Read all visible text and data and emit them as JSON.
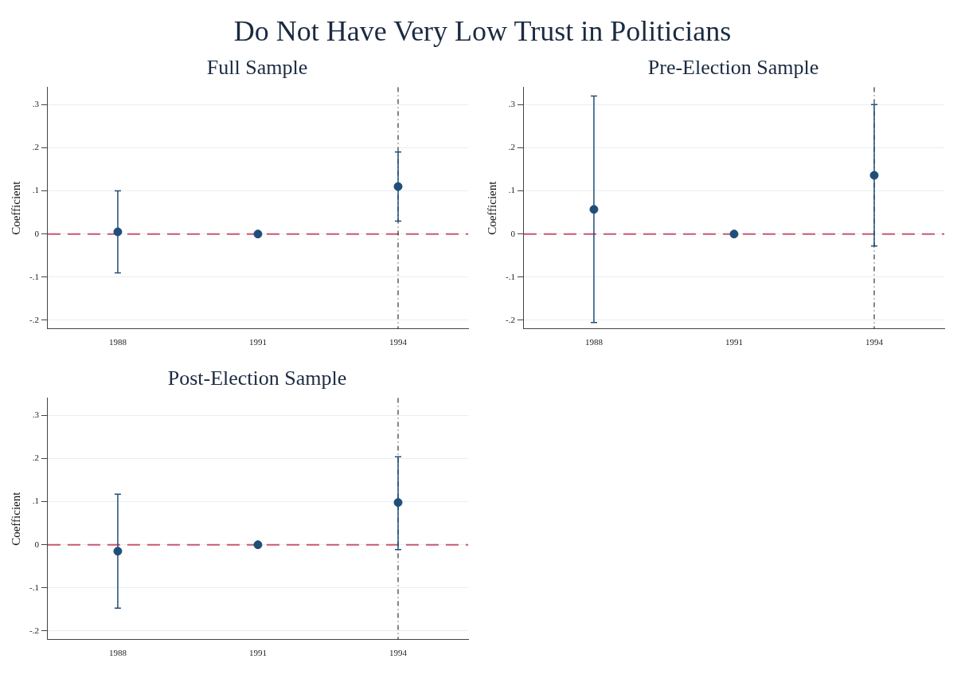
{
  "chart_data": [
    {
      "type": "scatter",
      "title": "Do Not Have Very Low Trust in Politicians",
      "subtitle": "Full Sample",
      "ylabel": "Coefficient",
      "x": [
        1988,
        1991,
        1994
      ],
      "values": [
        0.005,
        0,
        0.11
      ],
      "errors": [
        [
          -0.09,
          0.1
        ],
        null,
        [
          0.03,
          0.19
        ]
      ],
      "color": "#1f4e79",
      "marker": "circle",
      "grid": "y",
      "xlim": [
        1986.5,
        1995.5
      ],
      "xticks": [
        1988,
        1991,
        1994
      ],
      "ylim": [
        -0.22,
        0.34
      ],
      "yticks": [
        {
          "value": -0.2,
          "label": "-.2"
        },
        {
          "value": -0.1,
          "label": "-.1"
        },
        {
          "value": 0,
          "label": "0"
        },
        {
          "value": 0.1,
          "label": ".1"
        },
        {
          "value": 0.2,
          "label": ".2"
        },
        {
          "value": 0.3,
          "label": ".3"
        }
      ],
      "ref_lines": [
        {
          "axis": "y",
          "value": 0,
          "color": "#c8596f",
          "line_style": "dashed"
        },
        {
          "axis": "x",
          "value": 1994,
          "color": "#333333",
          "line_style": "dotted"
        }
      ]
    },
    {
      "type": "scatter",
      "subtitle": "Pre-Election Sample",
      "ylabel": "Coefficient",
      "x": [
        1988,
        1991,
        1994
      ],
      "values": [
        0.057,
        0,
        0.136
      ],
      "errors": [
        [
          -0.205,
          0.32
        ],
        null,
        [
          -0.028,
          0.3
        ]
      ],
      "color": "#1f4e79",
      "marker": "circle",
      "grid": "y",
      "xlim": [
        1986.5,
        1995.5
      ],
      "xticks": [
        1988,
        1991,
        1994
      ],
      "ylim": [
        -0.22,
        0.34
      ],
      "yticks": [
        {
          "value": -0.2,
          "label": "-.2"
        },
        {
          "value": -0.1,
          "label": "-.1"
        },
        {
          "value": 0,
          "label": "0"
        },
        {
          "value": 0.1,
          "label": ".1"
        },
        {
          "value": 0.2,
          "label": ".2"
        },
        {
          "value": 0.3,
          "label": ".3"
        }
      ],
      "ref_lines": [
        {
          "axis": "y",
          "value": 0,
          "color": "#c8596f",
          "line_style": "dashed"
        },
        {
          "axis": "x",
          "value": 1994,
          "color": "#333333",
          "line_style": "dotted"
        }
      ]
    },
    {
      "type": "scatter",
      "subtitle": "Post-Election Sample",
      "ylabel": "Coefficient",
      "x": [
        1988,
        1991,
        1994
      ],
      "values": [
        -0.015,
        0,
        0.098
      ],
      "errors": [
        [
          -0.147,
          0.117
        ],
        null,
        [
          -0.011,
          0.204
        ]
      ],
      "color": "#1f4e79",
      "marker": "circle",
      "grid": "y",
      "xlim": [
        1986.5,
        1995.5
      ],
      "xticks": [
        1988,
        1991,
        1994
      ],
      "ylim": [
        -0.22,
        0.34
      ],
      "yticks": [
        {
          "value": -0.2,
          "label": "-.2"
        },
        {
          "value": -0.1,
          "label": "-.1"
        },
        {
          "value": 0,
          "label": "0"
        },
        {
          "value": 0.1,
          "label": ".1"
        },
        {
          "value": 0.2,
          "label": ".2"
        },
        {
          "value": 0.3,
          "label": ".3"
        }
      ],
      "ref_lines": [
        {
          "axis": "y",
          "value": 0,
          "color": "#c8596f",
          "line_style": "dashed"
        },
        {
          "axis": "x",
          "value": 1994,
          "color": "#333333",
          "line_style": "dotted"
        }
      ]
    }
  ]
}
